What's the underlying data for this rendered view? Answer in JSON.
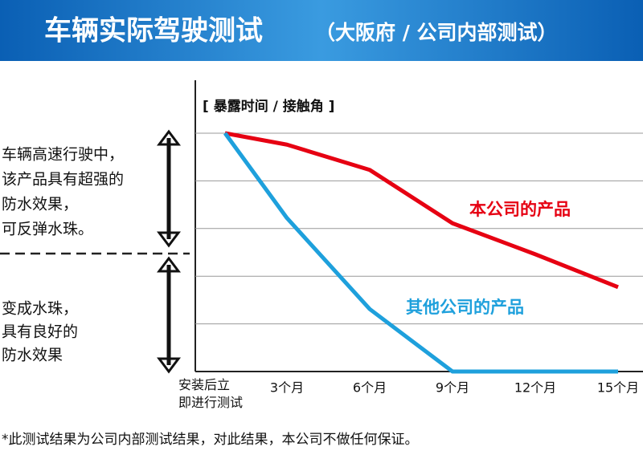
{
  "chart_data": {
    "type": "line",
    "title": "车辆实际驾驶测试",
    "subtitle": "（大阪府 / 公司内部测试）",
    "y_label": "[ 暴露时间 / 接触角 ]",
    "categories": [
      "安装后立即进行测试",
      "3个月",
      "6个月",
      "9个月",
      "12个月",
      "15个月"
    ],
    "series": [
      {
        "name": "本公司的产品",
        "color": "#e60012",
        "values": [
          5,
          4.76,
          4.23,
          3.11,
          2.46,
          1.77
        ]
      },
      {
        "name": "其他公司的产品",
        "color": "#1ea0dc",
        "values": [
          5,
          3.22,
          1.31,
          0,
          0,
          0
        ]
      }
    ],
    "ylim": [
      0,
      5
    ],
    "yticks": [
      0,
      1,
      2,
      3,
      4,
      5
    ],
    "grid": true,
    "annotations": [
      [
        "车辆高速行驶中，",
        "该产品具有超强的",
        "防水效果，",
        "可反弹水珠。"
      ],
      [
        "变成水珠，",
        "具有良好的",
        "防水效果"
      ]
    ],
    "footnote": "*此测试结果为公司内部测试结果，对此结果，本公司不做任何保证。"
  }
}
